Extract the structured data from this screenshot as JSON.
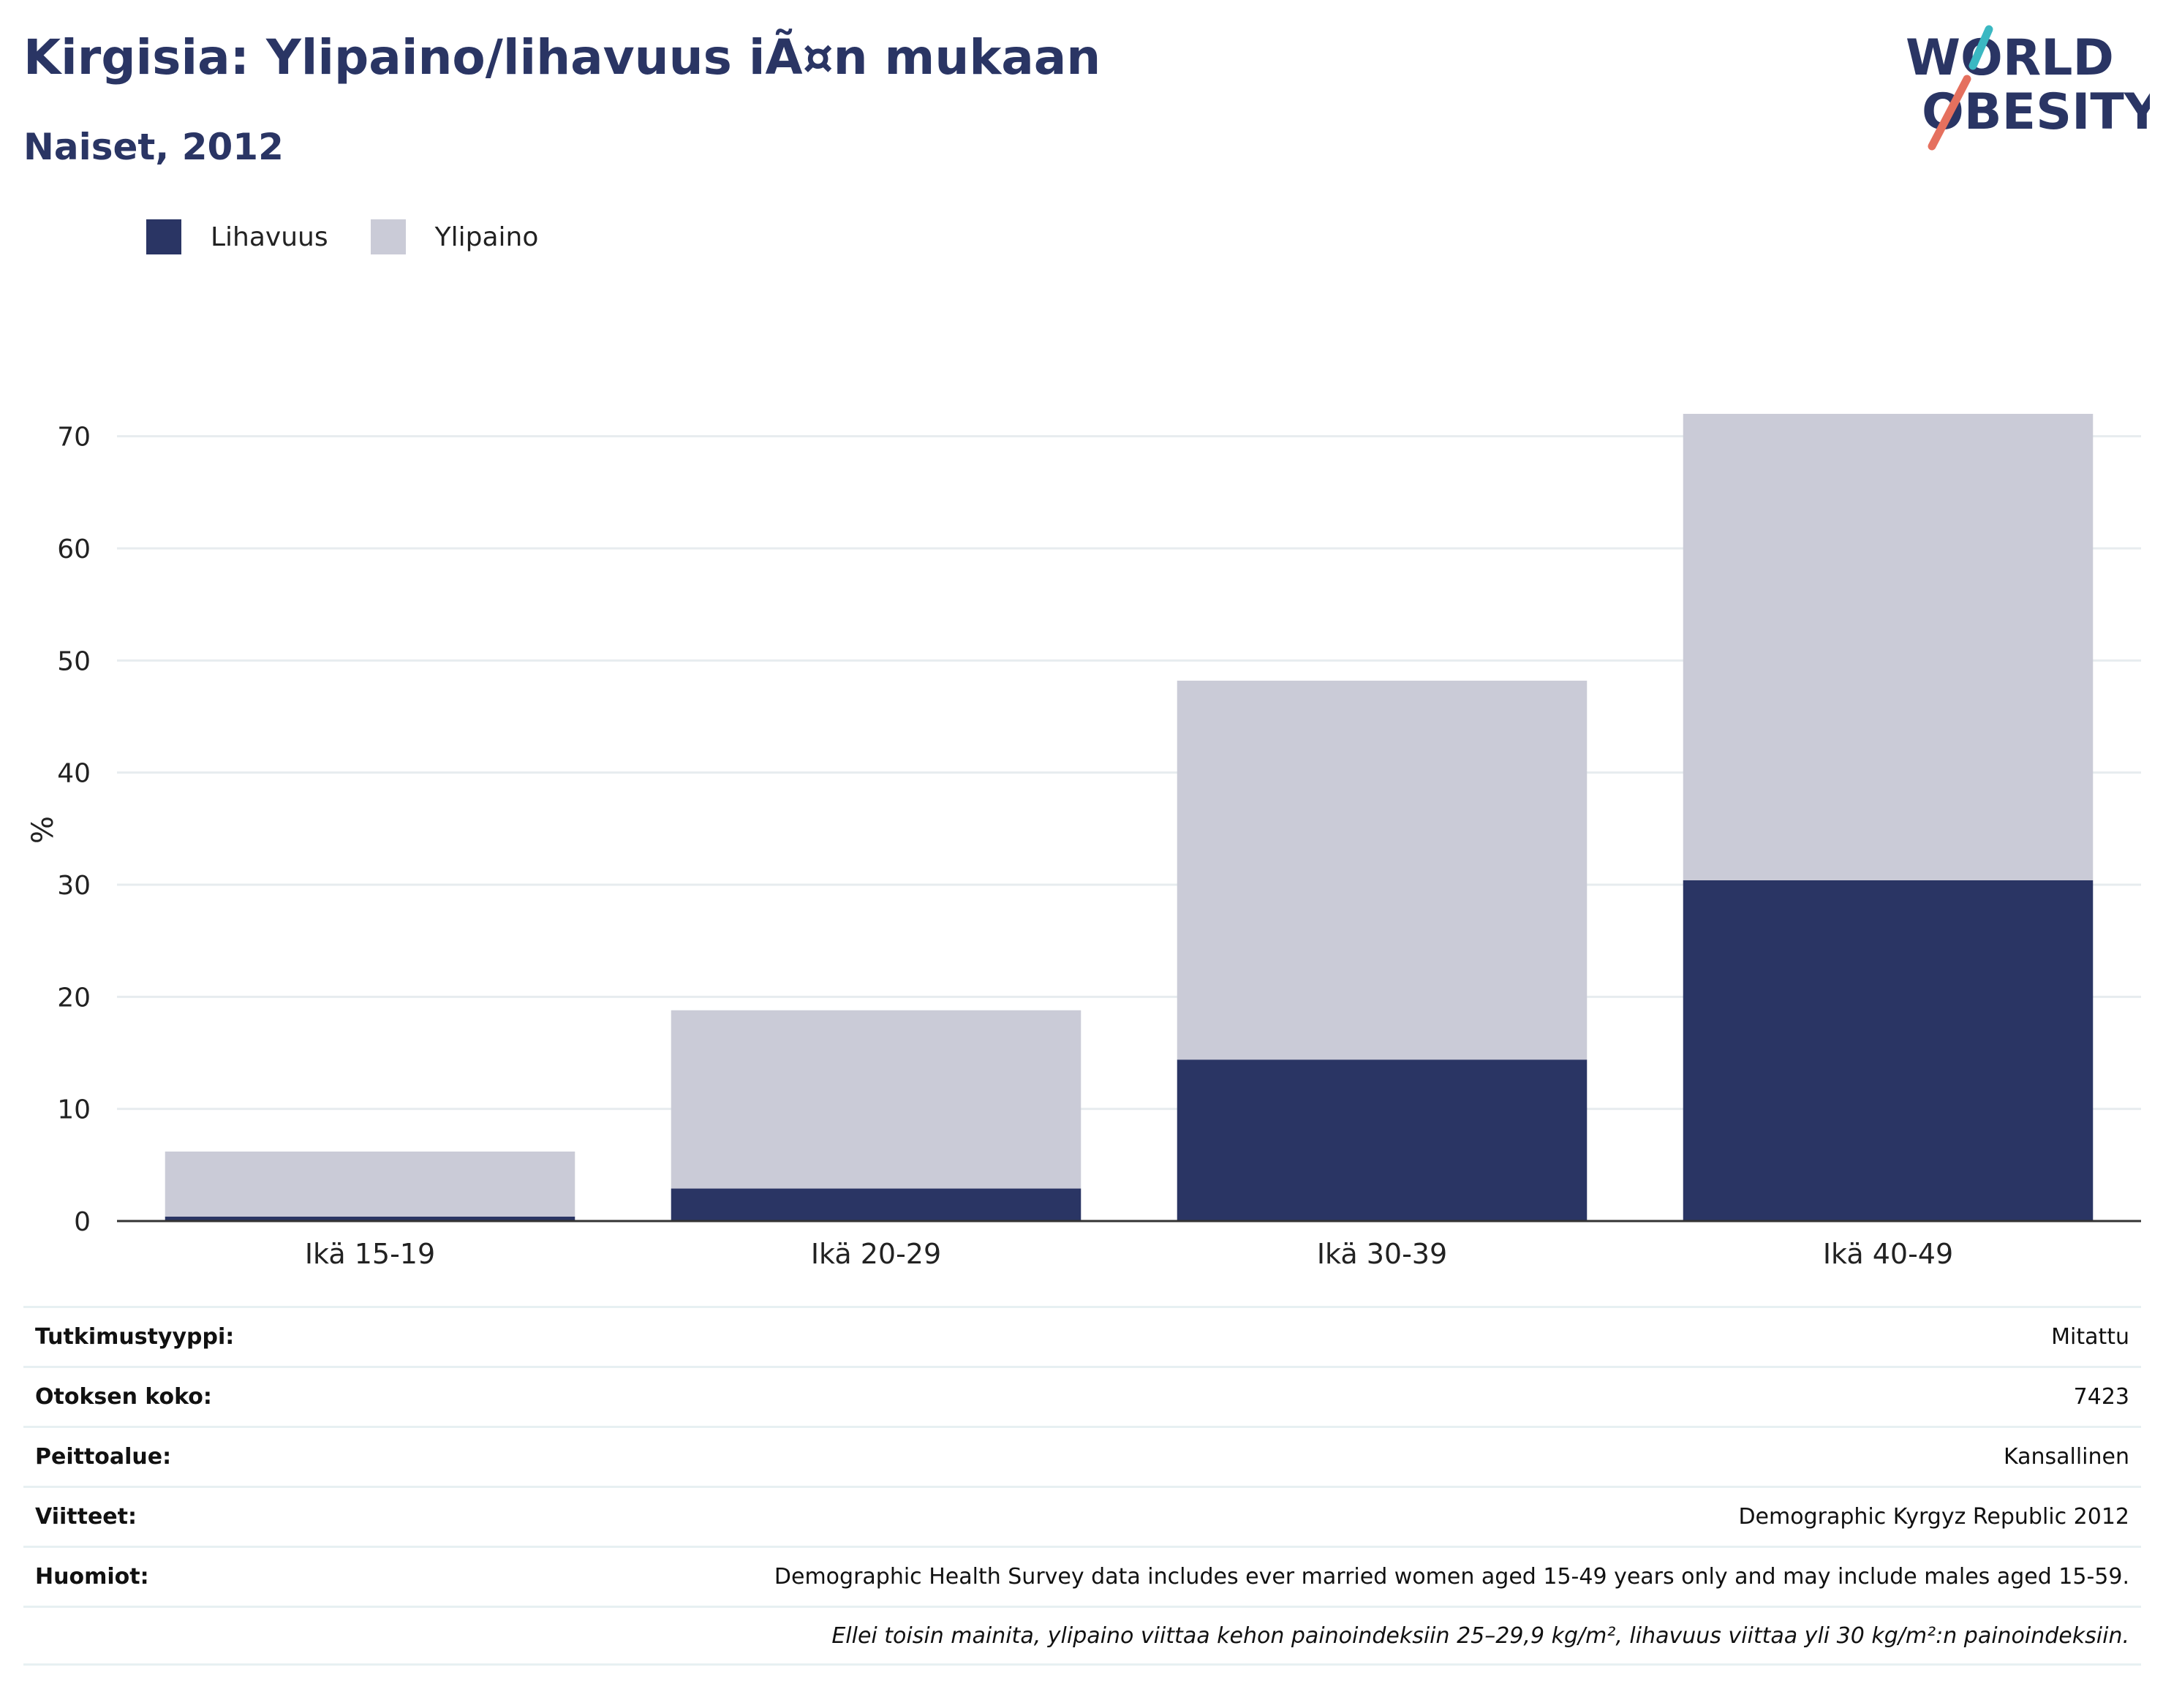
{
  "title": "Kirgisia: Ylipaino/lihavuus iÃ¤n mukaan",
  "subtitle": "Naiset, 2012",
  "logo": {
    "line1": "WORLD",
    "line2": "OBESITY"
  },
  "colors": {
    "lihavuus": "#2a3564",
    "ylipaino": "#cacbd7",
    "title": "#2a3564",
    "logo_teal": "#3bb8c2",
    "logo_coral": "#e5705e"
  },
  "legend": [
    {
      "label": "Lihavuus",
      "color": "#2a3564"
    },
    {
      "label": "Ylipaino",
      "color": "#cacbd7"
    }
  ],
  "chart_data": {
    "type": "bar",
    "stacked": true,
    "categories": [
      "Ikä 15-19",
      "Ikä 20-29",
      "Ikä 30-39",
      "Ikä 40-49"
    ],
    "series": [
      {
        "name": "Lihavuus",
        "values": [
          0.4,
          2.9,
          14.4,
          30.4
        ]
      },
      {
        "name": "Ylipaino",
        "values": [
          5.8,
          15.9,
          33.8,
          41.6
        ]
      }
    ],
    "ylabel": "%",
    "xlabel": "",
    "ylim": [
      0,
      75
    ],
    "yticks": [
      0,
      10,
      20,
      30,
      40,
      50,
      60,
      70
    ],
    "grid": true,
    "legend_position": "top-left"
  },
  "info": [
    {
      "key": "Tutkimustyyppi:",
      "value": "Mitattu"
    },
    {
      "key": "Otoksen koko:",
      "value": "7423"
    },
    {
      "key": "Peittoalue:",
      "value": "Kansallinen"
    },
    {
      "key": "Viitteet:",
      "value": "Demographic Kyrgyz Republic 2012"
    },
    {
      "key": "Huomiot:",
      "value": "Demographic Health Survey data includes ever married women aged 15-49 years only and may include males aged 15-59."
    }
  ],
  "footnote": "Ellei toisin mainita, ylipaino viittaa kehon painoindeksiin 25–29,9 kg/m², lihavuus viittaa yli 30 kg/m²:n painoindeksiin."
}
